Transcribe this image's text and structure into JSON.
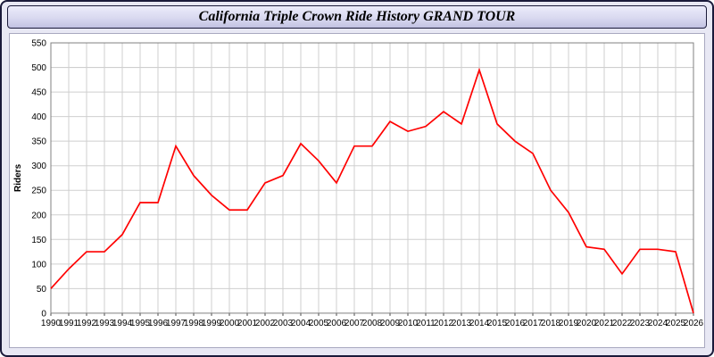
{
  "window": {
    "title": "California Triple Crown Ride History GRAND TOUR"
  },
  "theme": {
    "frame_border": "#1a1a3a",
    "page_background": "#e8e8f4",
    "titlebar_gradient_top": "#ececfb",
    "titlebar_gradient_bottom": "#c2c2e2",
    "plot_background": "#ffffff",
    "gridline_color": "#cfcfcf",
    "line_color": "#ff0000"
  },
  "chart_data": {
    "type": "line",
    "title": "California Triple Crown Ride History GRAND TOUR",
    "xlabel": "",
    "ylabel": "Riders",
    "ylim": [
      0,
      550
    ],
    "ytick_step": 50,
    "grid": true,
    "legend": "none",
    "categories": [
      1990,
      1991,
      1992,
      1993,
      1994,
      1995,
      1996,
      1997,
      1998,
      1999,
      2000,
      2001,
      2002,
      2003,
      2004,
      2005,
      2006,
      2007,
      2008,
      2009,
      2010,
      2011,
      2012,
      2013,
      2014,
      2015,
      2016,
      2017,
      2018,
      2019,
      2020,
      2021,
      2022,
      2023,
      2024,
      2025,
      2026
    ],
    "series": [
      {
        "name": "Riders",
        "color": "#ff0000",
        "values": [
          50,
          90,
          125,
          125,
          160,
          225,
          225,
          340,
          280,
          240,
          210,
          210,
          265,
          280,
          345,
          310,
          265,
          340,
          340,
          390,
          370,
          380,
          410,
          385,
          495,
          385,
          350,
          325,
          250,
          205,
          135,
          130,
          80,
          130,
          130,
          125,
          0
        ]
      }
    ]
  }
}
